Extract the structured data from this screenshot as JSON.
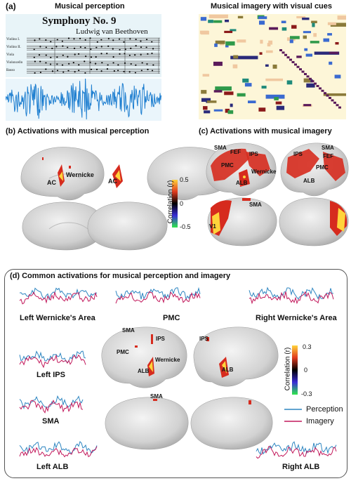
{
  "panel_a": {
    "tag": "(a)",
    "title_left": "Musical perception",
    "title_right": "Musical imagery with visual cues",
    "score_title": "Symphony No. 9",
    "score_composer": "Ludwig van Beethoven",
    "staff_labels": [
      "Violino I.",
      "Violino II.",
      "Viola",
      "Violoncello",
      "Basso"
    ]
  },
  "panel_b": {
    "title": "(b) Activations with musical perception",
    "labels": {
      "wernicke": "Wernicke",
      "ac_left": "AC",
      "ac_right": "AC"
    }
  },
  "colorbar_bc": {
    "label": "Correlation (r)",
    "ticks": [
      "0.5",
      "0",
      "-0.5"
    ]
  },
  "panel_c": {
    "title": "(c) Activations with musical imagery",
    "labels": {
      "sma_l": "SMA",
      "fef_l": "FEF",
      "ips_l": "IPS",
      "pmc_l": "PMC",
      "wernicke": "Wernicke",
      "alb_l": "ALB",
      "ips_r": "IPS",
      "sma_r": "SMA",
      "fef_r": "FEF",
      "pmc_r": "PMC",
      "alb_r": "ALB",
      "sma_med": "SMA",
      "v1": "V1"
    }
  },
  "panel_d": {
    "title": "(d) Common activations for musical perception and imagery",
    "regions": {
      "left_wernicke": "Left Wernicke's Area",
      "pmc": "PMC",
      "right_wernicke": "Right Wernicke's Area",
      "left_ips": "Left IPS",
      "sma": "SMA",
      "left_alb": "Left ALB",
      "right_alb": "Right ALB"
    },
    "brain_labels": {
      "sma": "SMA",
      "ips_l": "IPS",
      "pmc": "PMC",
      "wernicke": "Wernicke",
      "alb_l": "ALB",
      "ips_r": "IPS",
      "alb_r": "ALB",
      "sma_med": "SMA"
    },
    "colorbar": {
      "label": "Correlation (r)",
      "ticks": [
        "0.3",
        "0",
        "-0.3"
      ]
    },
    "legend": [
      {
        "name": "Perception",
        "color": "#2e86c1"
      },
      {
        "name": "Imagery",
        "color": "#c2185b"
      }
    ]
  },
  "colors": {
    "perception": "#2e86c1",
    "imagery": "#c2185b",
    "waveform": "#1f7fd0",
    "score_bg": "#e8f4f8",
    "roll_bg": "#fdf6d8",
    "brain": "#d9d9d9",
    "activation_red": "#d62b1e",
    "activation_yellow": "#ffd43b"
  }
}
